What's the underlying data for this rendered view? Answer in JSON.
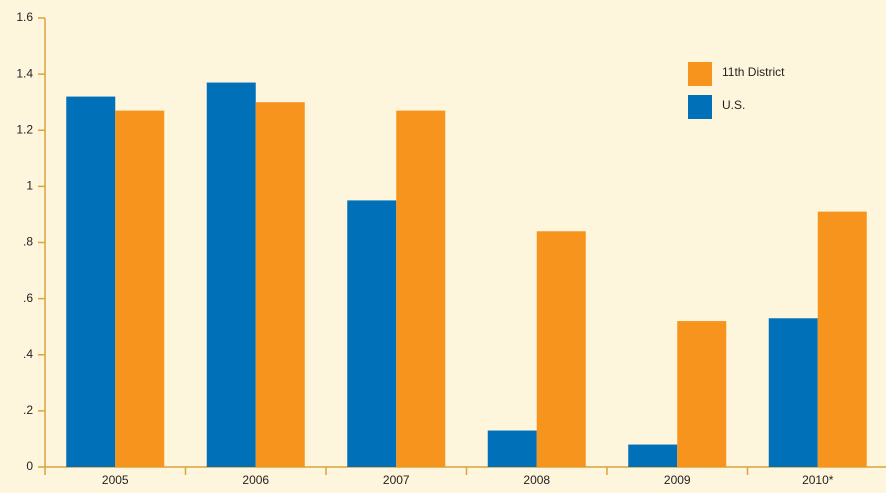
{
  "chart_data": {
    "type": "bar",
    "categories": [
      "2005",
      "2006",
      "2007",
      "2008",
      "2009",
      "2010*"
    ],
    "series": [
      {
        "name": "U.S.",
        "color": "#0070b8",
        "values": [
          1.32,
          1.37,
          0.95,
          0.13,
          0.08,
          0.53
        ]
      },
      {
        "name": "11th District",
        "color": "#f7941d",
        "values": [
          1.27,
          1.3,
          1.27,
          0.84,
          0.52,
          0.91
        ]
      }
    ],
    "ylim": [
      0,
      1.6
    ],
    "yticks": [
      0,
      {
        "value": 0.2,
        "label": ".2"
      },
      {
        "value": 0.4,
        "label": ".4"
      },
      {
        "value": 0.6,
        "label": ".6"
      },
      {
        "value": 0.8,
        "label": ".8"
      },
      1,
      1.2,
      1.4,
      1.6
    ],
    "grid": false
  }
}
